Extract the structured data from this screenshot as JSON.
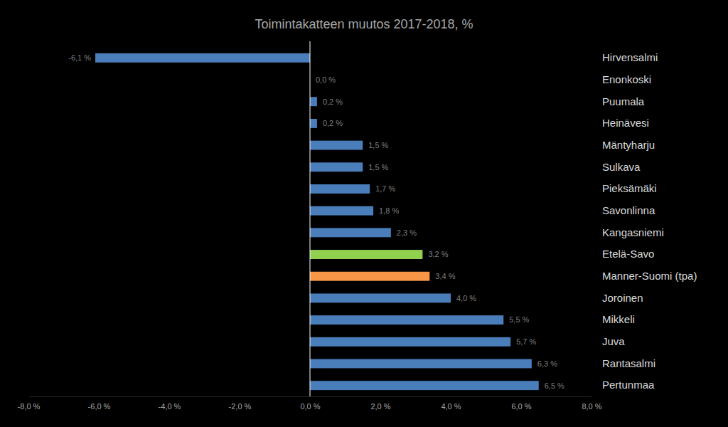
{
  "chart_data": {
    "type": "bar",
    "orientation": "horizontal",
    "title": "Toimintakatteen muutos 2017-2018, %",
    "categories": [
      "Hirvensalmi",
      "Enonkoski",
      "Puumala",
      "Heinävesi",
      "Mäntyharju",
      "Sulkava",
      "Pieksämäki",
      "Savonlinna",
      "Kangasniemi",
      "Etelä-Savo",
      "Manner-Suomi (tpa)",
      "Joroinen",
      "Mikkeli",
      "Juva",
      "Rantasalmi",
      "Pertunmaa"
    ],
    "values": [
      -6.1,
      0.0,
      0.2,
      0.2,
      1.5,
      1.5,
      1.7,
      1.8,
      2.3,
      3.2,
      3.4,
      4.0,
      5.5,
      5.7,
      6.3,
      6.5
    ],
    "value_labels": [
      "-6,1 %",
      "0,0 %",
      "0,2 %",
      "0,2 %",
      "1,5 %",
      "1,5 %",
      "1,7 %",
      "1,8 %",
      "2,3 %",
      "3,2 %",
      "3,4 %",
      "4,0 %",
      "5,5 %",
      "5,7 %",
      "6,3 %",
      "6,5 %"
    ],
    "colors": [
      "#4a7ebb",
      "#4a7ebb",
      "#4a7ebb",
      "#4a7ebb",
      "#4a7ebb",
      "#4a7ebb",
      "#4a7ebb",
      "#4a7ebb",
      "#4a7ebb",
      "#92d050",
      "#f79646",
      "#4a7ebb",
      "#4a7ebb",
      "#4a7ebb",
      "#4a7ebb",
      "#4a7ebb"
    ],
    "xlim": [
      -8,
      8
    ],
    "xticks": [
      {
        "value": -8,
        "label": "-8,0 %"
      },
      {
        "value": -6,
        "label": "-6,0 %"
      },
      {
        "value": -4,
        "label": "-4,0 %"
      },
      {
        "value": -2,
        "label": "-2,0 %"
      },
      {
        "value": 0,
        "label": "0,0 %"
      },
      {
        "value": 2,
        "label": "2,0 %"
      },
      {
        "value": 4,
        "label": "4,0 %"
      },
      {
        "value": 6,
        "label": "6,0 %"
      },
      {
        "value": 8,
        "label": "8,0 %"
      }
    ],
    "grid": false,
    "data_labels": true
  }
}
